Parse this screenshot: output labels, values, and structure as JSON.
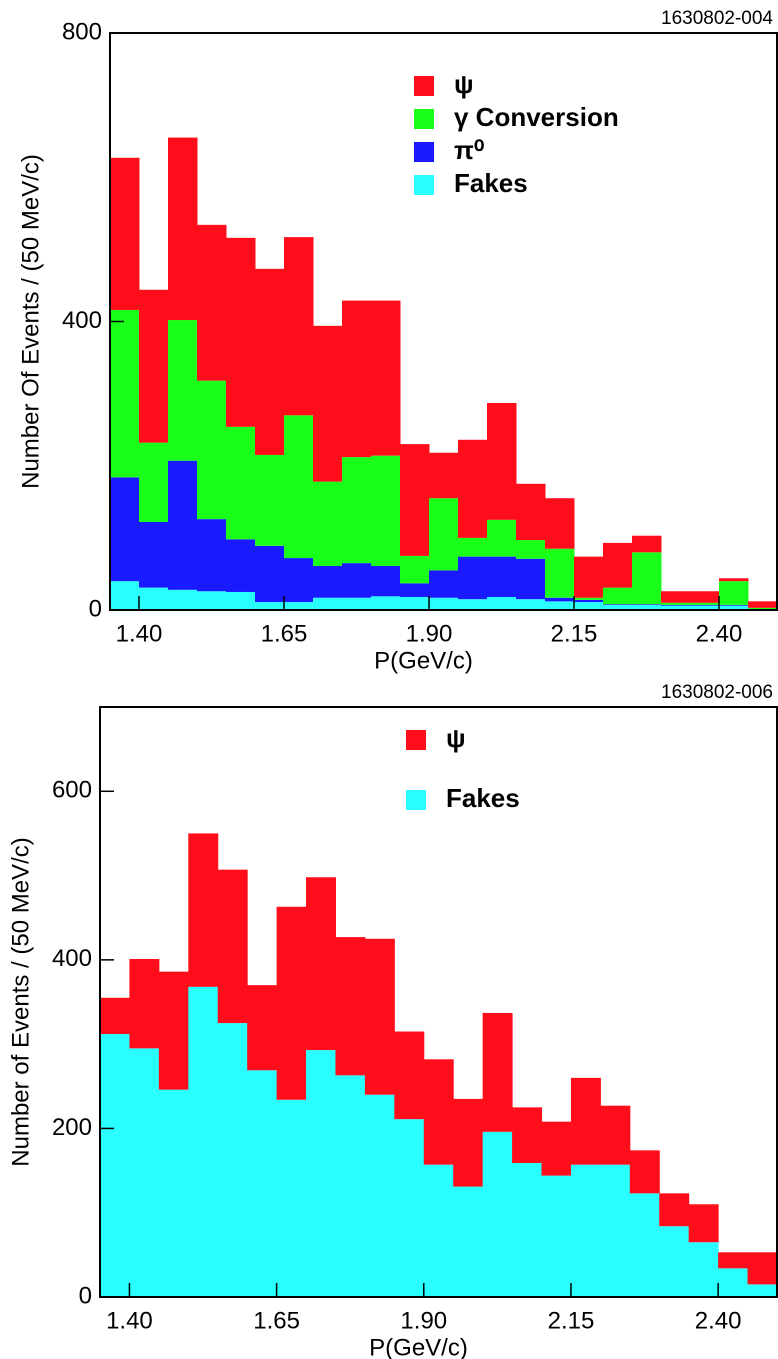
{
  "chart_data": [
    {
      "type": "histogram",
      "stacked": true,
      "label": "1630802-004",
      "xlabel": "P(GeV/c)",
      "ylabel": "Number Of Events / (50 MeV/c)",
      "bins": [
        1.35,
        1.4,
        1.45,
        1.5,
        1.55,
        1.6,
        1.65,
        1.7,
        1.75,
        1.8,
        1.85,
        1.9,
        1.95,
        2.0,
        2.05,
        2.1,
        2.15,
        2.2,
        2.25,
        2.3,
        2.35,
        2.4,
        2.45,
        2.5
      ],
      "xlim": [
        1.35,
        2.5
      ],
      "xticks": [
        {
          "value": 1.4,
          "label": "1.40"
        },
        {
          "value": 1.65,
          "label": "1.65"
        },
        {
          "value": 1.9,
          "label": "1.90"
        },
        {
          "value": 2.15,
          "label": "2.15"
        },
        {
          "value": 2.4,
          "label": "2.40"
        }
      ],
      "ylim": [
        0,
        800
      ],
      "yticks": [
        0,
        400,
        800
      ],
      "series": [
        {
          "name": "ψ",
          "color": "#ff0d1a",
          "values": [
            211,
            212,
            253,
            216,
            262,
            258,
            247,
            216,
            217,
            215,
            155,
            63,
            136,
            162,
            78,
            70,
            57,
            62,
            23,
            16,
            16,
            4,
            9
          ]
        },
        {
          "name": "γ Conversion",
          "color": "#1aff1a",
          "values": [
            232,
            110,
            195,
            192,
            156,
            126,
            198,
            117,
            147,
            153,
            38,
            100,
            26,
            51,
            26,
            68,
            3,
            23,
            72,
            3,
            3,
            33,
            2
          ]
        },
        {
          "name": "π⁰",
          "color": "#1a1aff",
          "values": [
            144,
            91,
            179,
            100,
            73,
            78,
            61,
            44,
            48,
            42,
            19,
            38,
            59,
            56,
            56,
            5,
            3,
            1,
            1,
            1,
            1,
            1,
            0
          ]
        },
        {
          "name": "Fakes",
          "color": "#29ffff",
          "values": [
            40,
            31,
            28,
            26,
            25,
            11,
            11,
            17,
            17,
            19,
            18,
            17,
            15,
            18,
            15,
            12,
            11,
            7,
            7,
            6,
            6,
            6,
            1
          ]
        }
      ]
    },
    {
      "type": "histogram",
      "stacked": true,
      "label": "1630802-006",
      "xlabel": "P(GeV/c)",
      "ylabel": "Number of Events / (50 MeV/c)",
      "bins": [
        1.35,
        1.4,
        1.45,
        1.5,
        1.55,
        1.6,
        1.65,
        1.7,
        1.75,
        1.8,
        1.85,
        1.9,
        1.95,
        2.0,
        2.05,
        2.1,
        2.15,
        2.2,
        2.25,
        2.3,
        2.35,
        2.4,
        2.45,
        2.5
      ],
      "xlim": [
        1.35,
        2.5
      ],
      "xticks": [
        {
          "value": 1.4,
          "label": "1.40"
        },
        {
          "value": 1.65,
          "label": "1.65"
        },
        {
          "value": 1.9,
          "label": "1.90"
        },
        {
          "value": 2.15,
          "label": "2.15"
        },
        {
          "value": 2.4,
          "label": "2.40"
        }
      ],
      "ylim": [
        0,
        700
      ],
      "yticks": [
        0,
        200,
        400,
        600
      ],
      "series": [
        {
          "name": "ψ",
          "color": "#ff0d1a",
          "values": [
            43,
            106,
            140,
            182,
            182,
            101,
            229,
            205,
            164,
            185,
            104,
            125,
            104,
            141,
            66,
            64,
            103,
            70,
            51,
            39,
            45,
            19,
            38
          ]
        },
        {
          "name": "Fakes",
          "color": "#29ffff",
          "values": [
            312,
            295,
            246,
            368,
            325,
            269,
            234,
            293,
            263,
            240,
            211,
            157,
            131,
            196,
            159,
            144,
            157,
            157,
            123,
            84,
            65,
            34,
            15
          ]
        }
      ]
    }
  ]
}
